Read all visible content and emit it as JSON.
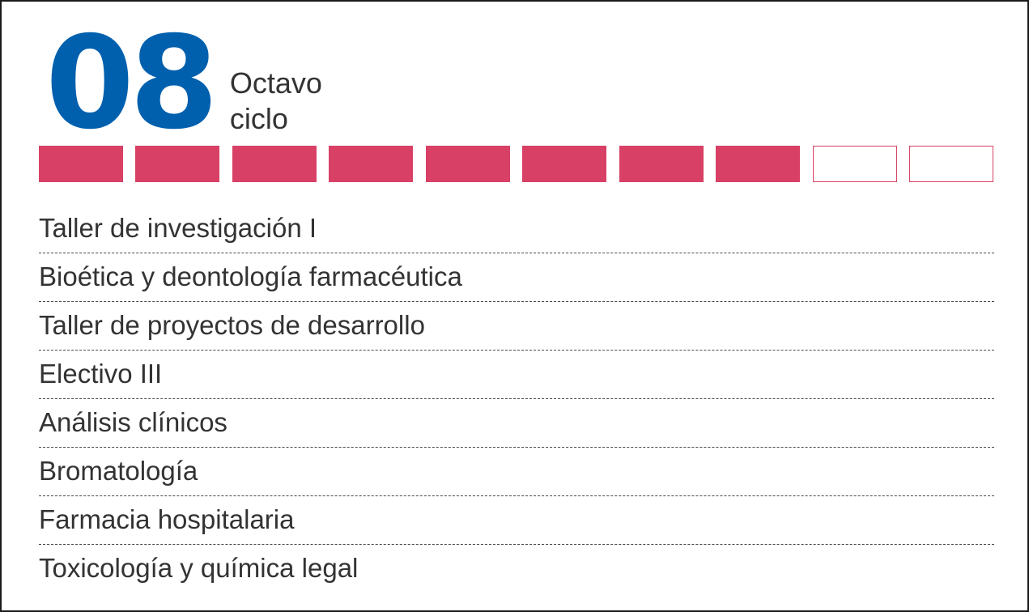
{
  "header": {
    "number": "08",
    "label_line1": "Octavo",
    "label_line2": "ciclo"
  },
  "progress": {
    "completed": 8,
    "total": 10,
    "fill_color": "#d84165"
  },
  "colors": {
    "number": "#0060ae",
    "accent": "#d84165",
    "text": "#333333"
  },
  "courses": [
    "Taller de investigación I",
    "Bioética y deontología farmacéutica",
    "Taller de proyectos de desarrollo",
    "Electivo III",
    "Análisis clínicos",
    "Bromatología",
    "Farmacia hospitalaria",
    "Toxicología y química legal"
  ]
}
